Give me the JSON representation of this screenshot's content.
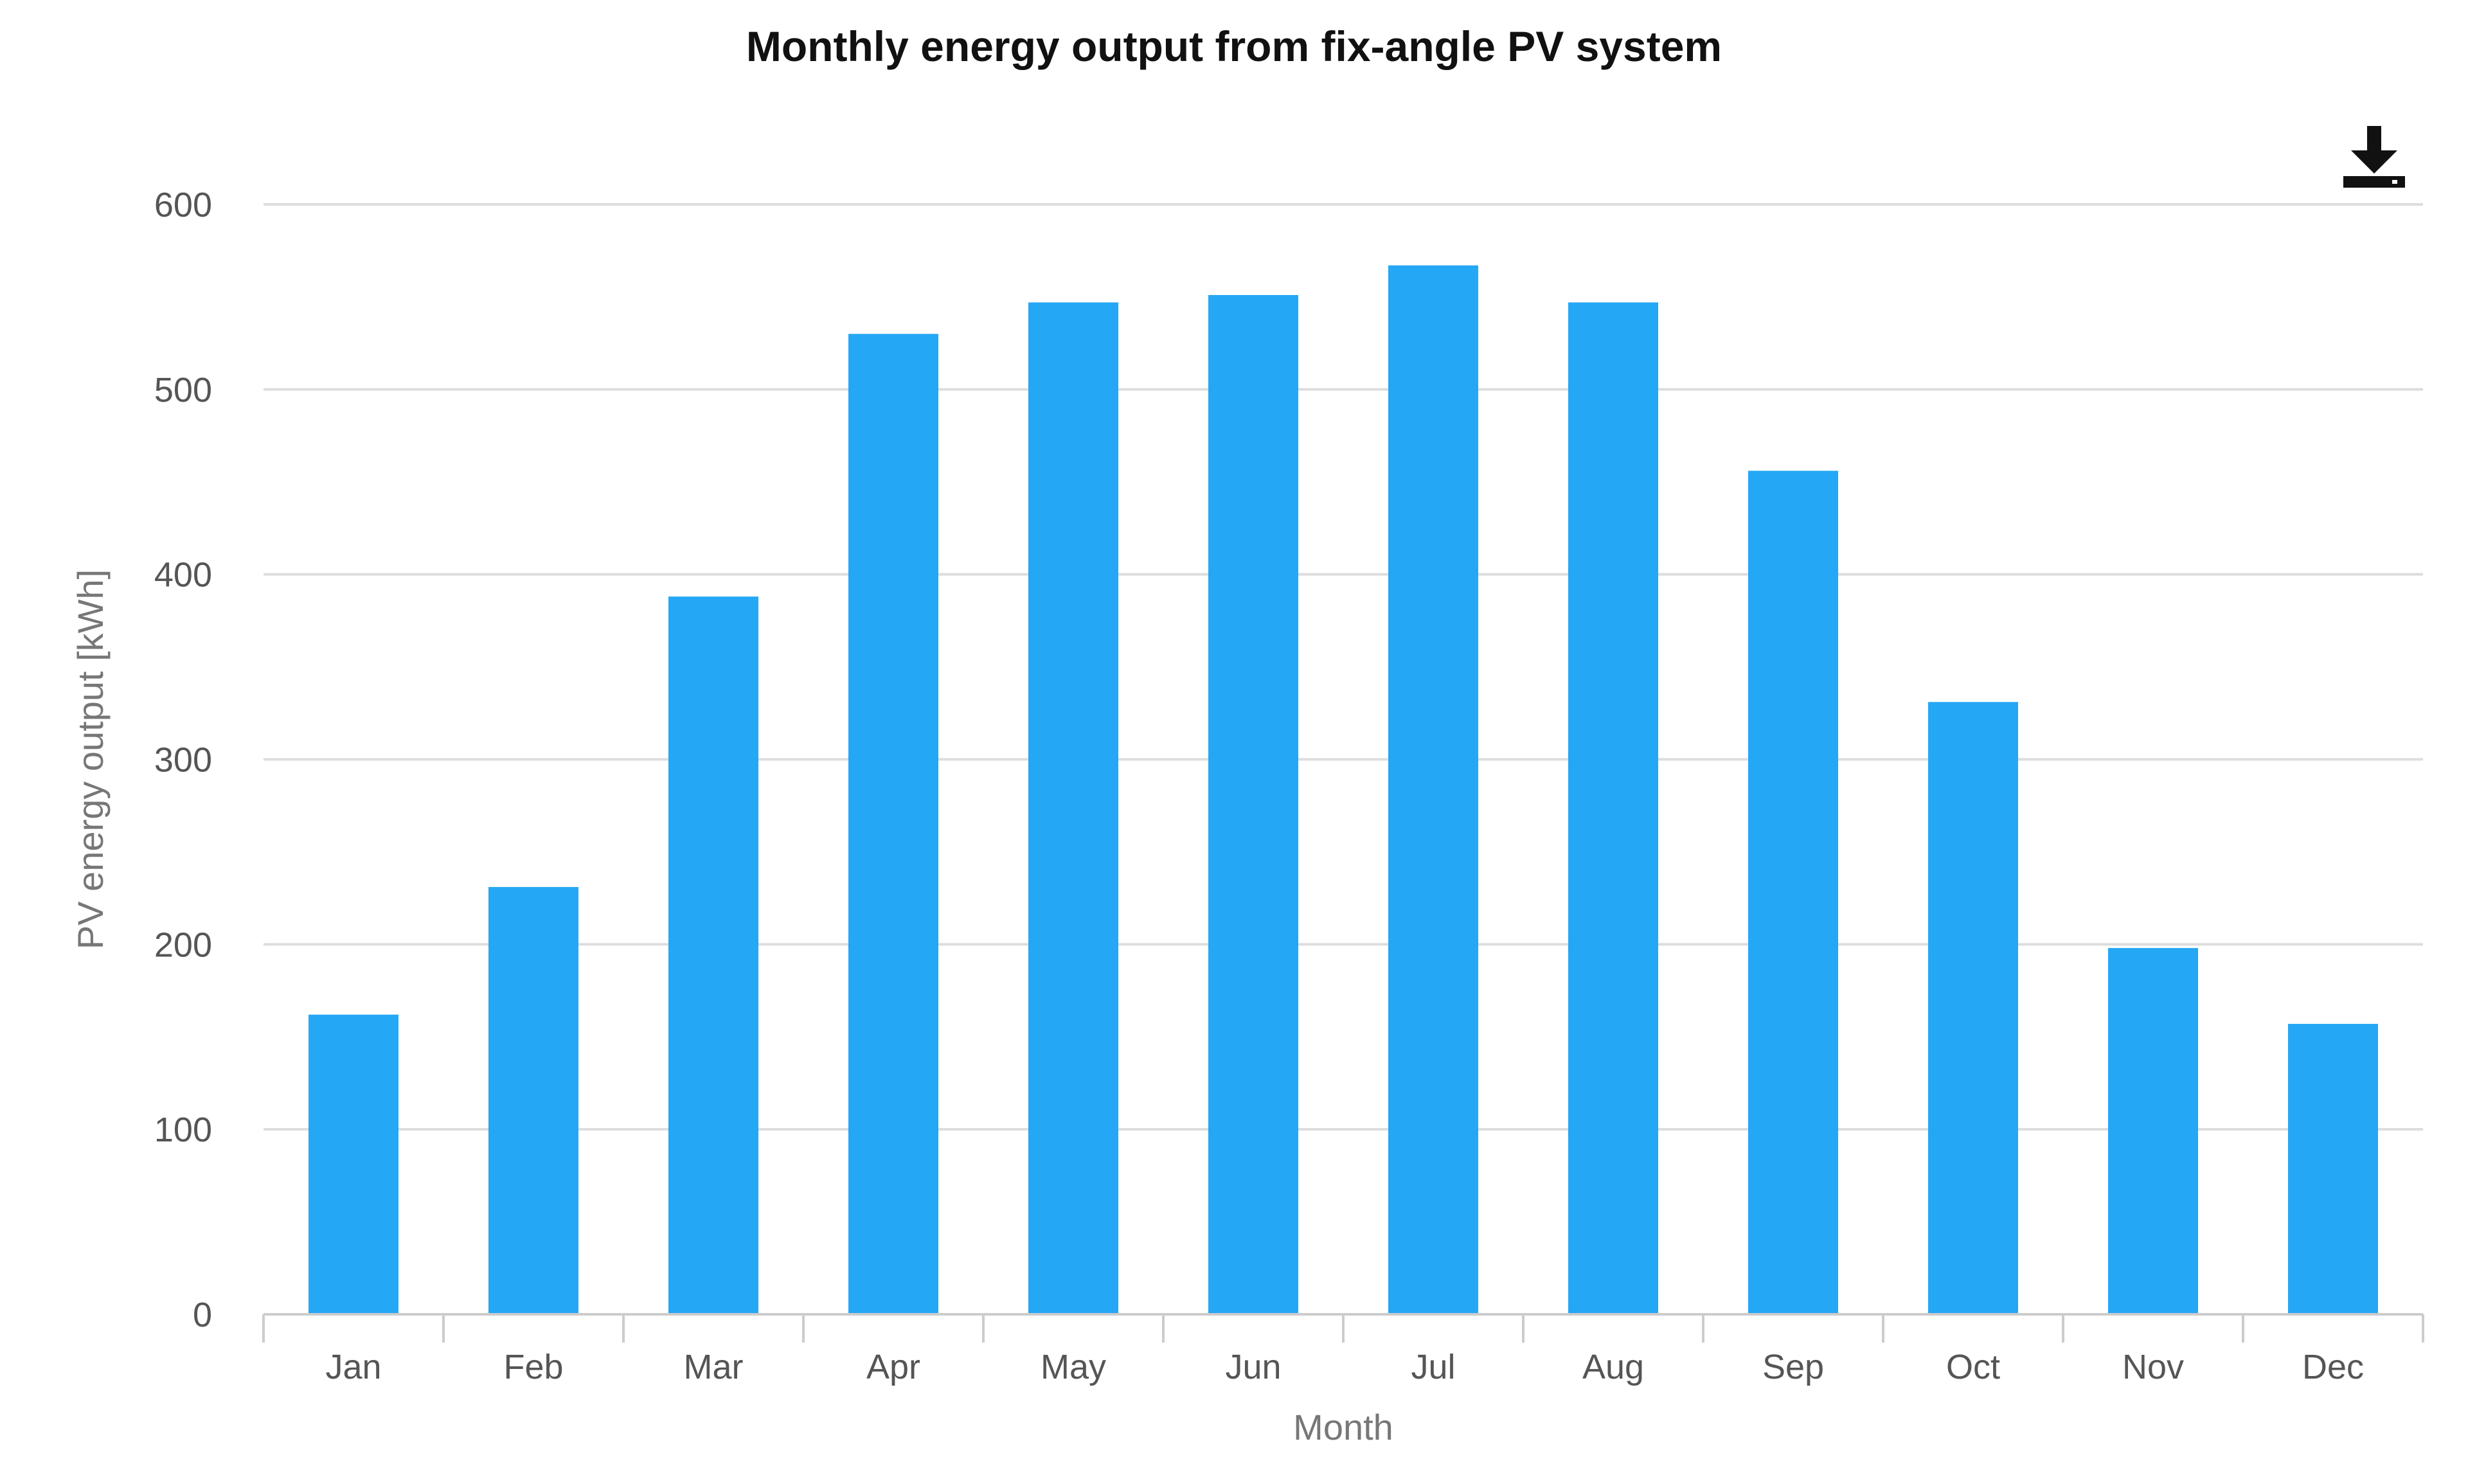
{
  "chart_data": {
    "type": "bar",
    "title": "Monthly energy output from fix-angle PV system",
    "xlabel": "Month",
    "ylabel": "PV energy output [kWh]",
    "categories": [
      "Jan",
      "Feb",
      "Mar",
      "Apr",
      "May",
      "Jun",
      "Jul",
      "Aug",
      "Sep",
      "Oct",
      "Nov",
      "Dec"
    ],
    "values": [
      162,
      231,
      388,
      530,
      547,
      551,
      567,
      547,
      456,
      331,
      198,
      157
    ],
    "y_ticks": [
      "0",
      "100",
      "200",
      "300",
      "400",
      "500",
      "600"
    ],
    "ylim": [
      0,
      600
    ],
    "grid": true,
    "legend": "none",
    "bar_color": "#24a7f5",
    "grid_color": "#dddddd",
    "axis_color": "#cccccc"
  },
  "toolbar": {
    "download_icon": "download-icon"
  }
}
